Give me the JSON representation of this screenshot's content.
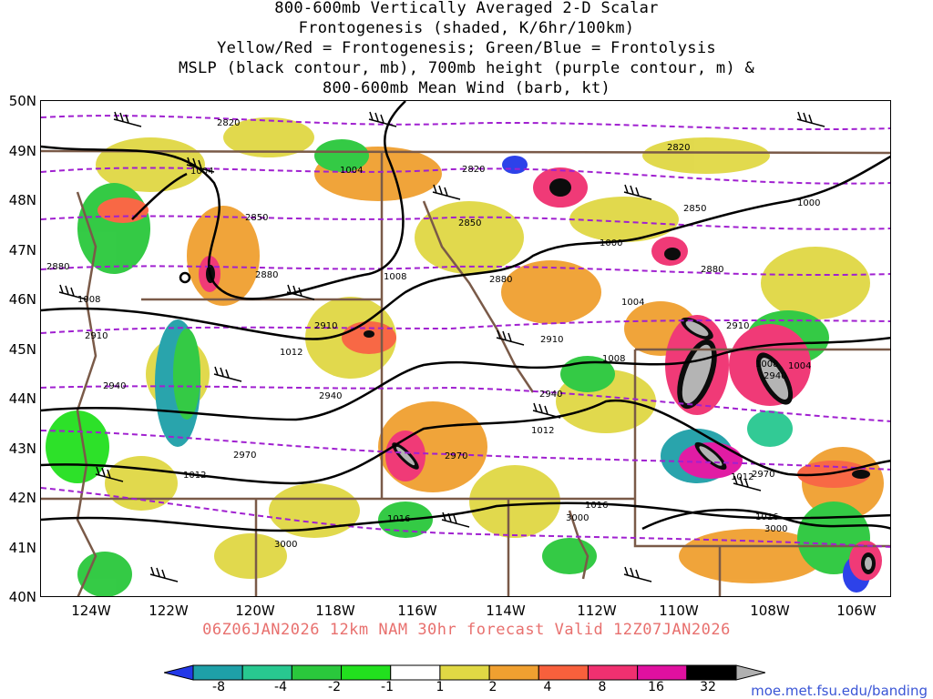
{
  "title_lines": [
    "800-600mb Vertically Averaged 2-D Scalar",
    "Frontogenesis (shaded, K/6hr/100km)",
    "Yellow/Red = Frontogenesis;  Green/Blue = Frontolysis",
    "MSLP (black contour, mb), 700mb height (purple contour, m) &",
    "800-600mb Mean Wind (barb, kt)"
  ],
  "lat_labels": [
    "50N",
    "49N",
    "48N",
    "47N",
    "46N",
    "45N",
    "44N",
    "43N",
    "42N",
    "41N",
    "40N"
  ],
  "lon_labels": [
    "124W",
    "122W",
    "120W",
    "118W",
    "116W",
    "114W",
    "112W",
    "110W",
    "108W",
    "106W"
  ],
  "forecast_line": "06Z06JAN2026 12km NAM 30hr forecast Valid 12Z07JAN2026",
  "colorbar": {
    "labels": [
      "-8",
      "-4",
      "-2",
      "-1",
      "1",
      "2",
      "4",
      "8",
      "16",
      "32"
    ],
    "colors": [
      "#2238e8",
      "#1ea0a8",
      "#28c890",
      "#2ac83c",
      "#22e01e",
      "#ffffff",
      "#e0d844",
      "#f0a030",
      "#f8603c",
      "#f03070",
      "#e010a0",
      "#000000",
      "#b0b0b0"
    ]
  },
  "height_labels_700mb": [
    "2820",
    "2820",
    "2820",
    "2850",
    "2850",
    "2850",
    "2880",
    "2880",
    "2880",
    "2880",
    "2910",
    "2910",
    "2910",
    "2910",
    "2940",
    "2940",
    "2940",
    "2940",
    "2970",
    "2970",
    "2970",
    "3000",
    "3000",
    "3000"
  ],
  "mslp_labels": [
    "1000",
    "1000",
    "1004",
    "1004",
    "1004",
    "1004",
    "1008",
    "1008",
    "1008",
    "1008",
    "1012",
    "1012",
    "1012",
    "1012",
    "1016",
    "1016",
    "1016",
    "1016"
  ],
  "credit": "moe.met.fsu.edu/banding",
  "colors": {
    "mslp": "#000000",
    "height": "#a020d0",
    "borders": "#7a5a48",
    "forecast": "#e8706e"
  }
}
